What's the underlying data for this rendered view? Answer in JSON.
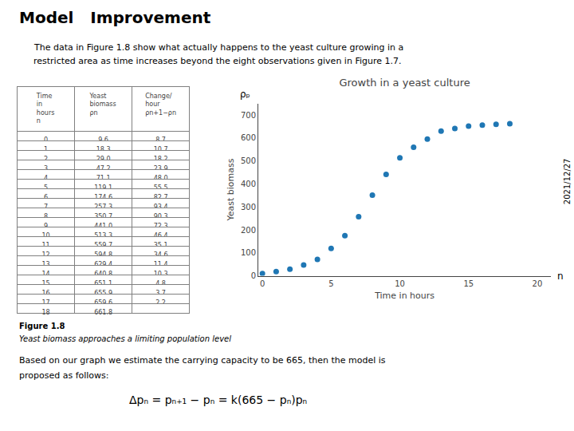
{
  "chart_data": [
    {
      "type": "scatter",
      "title": "Growth in a yeast culture",
      "x_label": "Time in hours",
      "y_label": "Yeast biomass",
      "x": [
        0,
        1,
        2,
        3,
        4,
        5,
        6,
        7,
        8,
        9,
        10,
        11,
        12,
        13,
        14,
        15,
        16,
        17,
        18
      ],
      "values": [
        9.6,
        18.3,
        29.0,
        47.2,
        71.1,
        119.1,
        174.6,
        257.3,
        350.7,
        441.0,
        513.3,
        559.7,
        594.8,
        629.4,
        640.8,
        651.1,
        655.9,
        659.6,
        661.8
      ],
      "xlim": [
        -0.3,
        21
      ],
      "xticks": [
        0,
        5,
        10,
        15,
        20
      ],
      "ylim": [
        0,
        750
      ],
      "yticks": [
        0,
        100,
        200,
        300,
        400,
        500,
        600,
        700
      ],
      "grid": false,
      "annotations": [
        "Model   Improvement",
        "The data in Figure 1.8 show what actually happens to the yeast culture growing in a",
        "restricted area as time increases beyond the eight observations given in Figure 1.7.",
        "2021/12/27",
        "Based on our graph we estimate the carrying capacity to be 665, then the model is",
        "proposed as follows:",
        "Δpₙ = pₙ₊₁ − pₙ = k(665 − pₙ)pₙ",
        "Figure 1.8",
        "Yeast biomass approaches a limiting population level",
        "ρₚ",
        "n"
      ]
    },
    {
      "type": "table",
      "header": [
        "Time\nin\nhours\nn",
        "Yeast\nbiomass\nρn",
        "Change/\nhour\nρn+1−ρn"
      ],
      "cells": [
        [
          0,
          1,
          2,
          3,
          4,
          5,
          6,
          7,
          8,
          9,
          10,
          11,
          12,
          13,
          14,
          15,
          16,
          17,
          18
        ],
        [
          "9.6",
          "18.3",
          "29.0",
          "47.2",
          "71.1",
          "119.1",
          "174.6",
          "257.3",
          "350.7",
          "441.0",
          "513.3",
          "559.7",
          "594.8",
          "629.4",
          "640.8",
          "651.1",
          "655.9",
          "659.6",
          "661.8"
        ],
        [
          "8.7",
          "10.7",
          "18.2",
          "23.9",
          "48.0",
          "55.5",
          "82.7",
          "93.4",
          "90.3",
          "72.3",
          "46.4",
          "35.1",
          "34.6",
          "11.4",
          "10.3",
          "4.8",
          "3.7",
          "2.2",
          null
        ]
      ]
    }
  ]
}
